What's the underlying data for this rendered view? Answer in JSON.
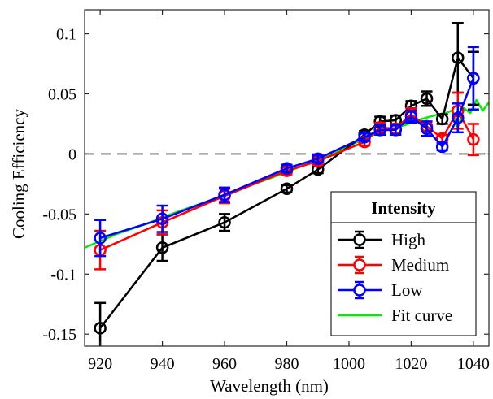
{
  "chart_data": {
    "type": "line",
    "xlabel": "Wavelength (nm)",
    "ylabel": "Cooling Efficiency",
    "xlim": [
      915,
      1045
    ],
    "ylim": [
      -0.16,
      0.12
    ],
    "x_ticks": [
      920,
      940,
      960,
      980,
      1000,
      1020,
      1040
    ],
    "y_ticks": [
      -0.15,
      -0.1,
      -0.05,
      0,
      0.05,
      0.1
    ],
    "x_tick_labels": [
      "920",
      "940",
      "960",
      "980",
      "1000",
      "1020",
      "1040"
    ],
    "y_tick_labels": [
      "-0.15",
      "-0.1",
      "-0.05",
      "0",
      "0.05",
      "0.1"
    ],
    "zero_line": {
      "y": 0,
      "style": "dashed",
      "color": "#a6a6a6"
    },
    "grid": false,
    "legend": {
      "title": "Intensity",
      "placement": "bottom-right"
    },
    "series": [
      {
        "name": "High",
        "color": "#000000",
        "marker": "circle",
        "x": [
          920,
          940,
          960,
          980,
          990,
          1005,
          1010,
          1015,
          1020,
          1025,
          1030,
          1035,
          1040
        ],
        "y": [
          -0.145,
          -0.078,
          -0.057,
          -0.029,
          -0.013,
          0.016,
          0.027,
          0.028,
          0.04,
          0.046,
          0.029,
          0.08,
          0.063
        ],
        "err": [
          0.021,
          0.011,
          0.007,
          0.003,
          0.003,
          0.003,
          0.004,
          0.004,
          0.004,
          0.006,
          0.004,
          0.029,
          0.022
        ]
      },
      {
        "name": "Medium",
        "color": "#ff0000",
        "marker": "circle",
        "x": [
          920,
          940,
          960,
          980,
          990,
          1005,
          1010,
          1015,
          1020,
          1025,
          1030,
          1035,
          1040
        ],
        "y": [
          -0.08,
          -0.057,
          -0.035,
          -0.014,
          -0.006,
          0.01,
          0.022,
          0.021,
          0.033,
          0.023,
          0.013,
          0.036,
          0.012
        ],
        "err": [
          0.016,
          0.01,
          0.006,
          0.003,
          0.003,
          0.003,
          0.004,
          0.004,
          0.005,
          0.004,
          0.003,
          0.015,
          0.013
        ]
      },
      {
        "name": "Low",
        "color": "#0000ff",
        "marker": "circle",
        "x": [
          920,
          940,
          960,
          980,
          990,
          1005,
          1010,
          1015,
          1020,
          1025,
          1030,
          1035,
          1040
        ],
        "y": [
          -0.07,
          -0.054,
          -0.034,
          -0.012,
          -0.004,
          0.014,
          0.02,
          0.02,
          0.031,
          0.021,
          0.006,
          0.03,
          0.063
        ],
        "err": [
          0.015,
          0.011,
          0.006,
          0.003,
          0.003,
          0.003,
          0.004,
          0.004,
          0.005,
          0.006,
          0.003,
          0.012,
          0.026
        ]
      },
      {
        "name": "Fit curve",
        "color": "#00ee00",
        "marker": "none",
        "x": [
          915,
          925,
          935,
          945,
          955,
          965,
          975,
          985,
          995,
          1005,
          1012,
          1018,
          1022,
          1026,
          1029,
          1031,
          1033,
          1035,
          1037,
          1039,
          1041,
          1043,
          1045
        ],
        "y": [
          -0.078,
          -0.067,
          -0.058,
          -0.048,
          -0.039,
          -0.029,
          -0.02,
          -0.01,
          0.0,
          0.013,
          0.02,
          0.024,
          0.028,
          0.031,
          0.033,
          0.034,
          0.036,
          0.022,
          0.038,
          0.034,
          0.045,
          0.036,
          0.043
        ]
      }
    ]
  }
}
